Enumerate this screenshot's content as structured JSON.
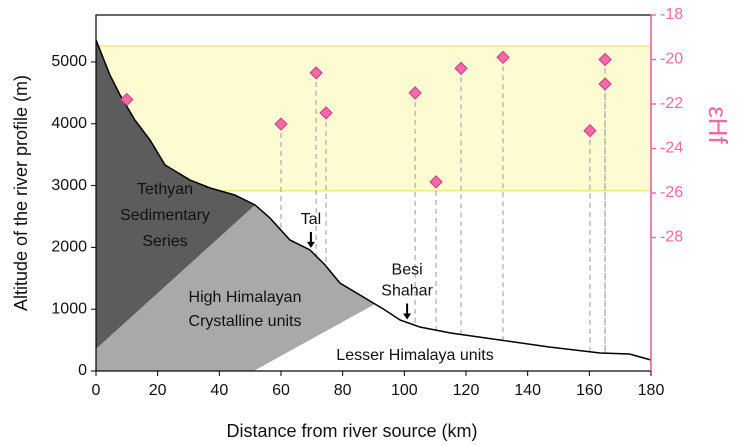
{
  "chart_data": {
    "type": "scatter",
    "xlabel": "Distance from river source (km)",
    "ylabel": "Altitude of the river profile (m)",
    "y2label": "εHf",
    "xlim": [
      0,
      180
    ],
    "ylim": [
      0,
      5760
    ],
    "y2lim": [
      -34,
      -18
    ],
    "xticks": [
      0,
      20,
      40,
      60,
      80,
      100,
      120,
      140,
      160,
      180
    ],
    "yticks": [
      0,
      1000,
      2000,
      3000,
      4000,
      5000
    ],
    "y2ticks": [
      -18,
      -20,
      -22,
      -24,
      -26,
      -28
    ],
    "y2color": "#f06aa8",
    "band": {
      "y2": [
        -25.9,
        -19.4
      ],
      "color": "#fdfbd2",
      "edge": "#f3e48a"
    },
    "profile": {
      "x": [
        0,
        1.3,
        4.5,
        7.8,
        12.6,
        17.5,
        22.4,
        30.5,
        37,
        45,
        51.6,
        56.4,
        62.9,
        69.4,
        74.3,
        79.1,
        85.6,
        93.7,
        98.6,
        105,
        115,
        131,
        147,
        163.5,
        173,
        180
      ],
      "y": [
        5356,
        5194,
        4790,
        4466,
        4061,
        3738,
        3333,
        3090,
        2961,
        2848,
        2686,
        2476,
        2120,
        1958,
        1715,
        1424,
        1230,
        987,
        825,
        712,
        615,
        502,
        388,
        291,
        275,
        178
      ],
      "color": "#000000"
    },
    "units": [
      {
        "lines": [
          "Tethyan",
          "Sedimentary",
          "Series"
        ],
        "color": "#5c5c5c",
        "from": 0,
        "to": 51.6,
        "base": [
          [
            0,
            356
          ]
        ]
      },
      {
        "lines": [
          "High Himalayan",
          "Crystalline units"
        ],
        "color": "#a9a9a9",
        "from": 51.6,
        "to": 90.5,
        "base": [
          [
            51.2,
            0
          ],
          [
            0,
            0
          ],
          [
            0,
            356
          ]
        ]
      },
      {
        "lines": [
          "Lesser Himalaya units"
        ],
        "color": "#ffffff",
        "from": 90.5,
        "to": 180,
        "base": [
          [
            180,
            0
          ],
          [
            51.2,
            0
          ]
        ]
      }
    ],
    "series": [
      {
        "axis": "y2",
        "color": "#f06ba8",
        "edge": "#d23a86",
        "x": [
          10,
          60,
          71.4,
          74.6,
          103.5,
          110.3,
          118.4,
          132,
          160.2,
          165.1,
          165.1
        ],
        "values": [
          -21.8,
          -22.9,
          -20.6,
          -22.4,
          -21.5,
          -25.5,
          -20.4,
          -19.9,
          -23.2,
          -20.0,
          -21.1
        ]
      }
    ],
    "annotations": [
      {
        "lines": [
          "Tal"
        ],
        "x": 69.7
      },
      {
        "lines": [
          "Besi",
          "Shahar"
        ],
        "x": 100.9
      }
    ]
  }
}
